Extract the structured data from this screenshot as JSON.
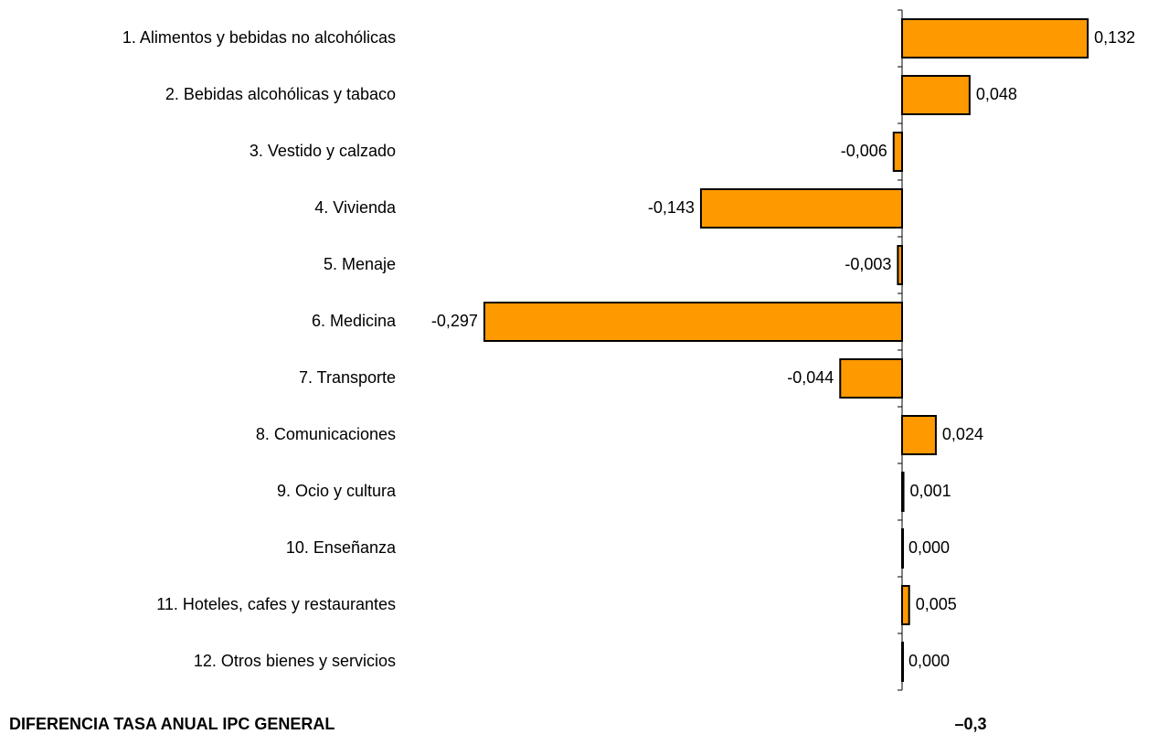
{
  "chart_data": {
    "type": "bar",
    "orientation": "horizontal",
    "categories": [
      "1. Alimentos y bebidas no alcohólicas",
      "2. Bebidas alcohólicas y tabaco",
      "3. Vestido y calzado",
      "4. Vivienda",
      "5. Menaje",
      "6. Medicina",
      "7. Transporte",
      "8. Comunicaciones",
      "9. Ocio y cultura",
      "10. Enseñanza",
      "11. Hoteles, cafes y restaurantes",
      "12. Otros bienes y servicios"
    ],
    "values": [
      0.132,
      0.048,
      -0.006,
      -0.143,
      -0.003,
      -0.297,
      -0.044,
      0.024,
      0.001,
      0.0,
      0.005,
      0.0
    ],
    "value_labels": [
      "0,132",
      "0,048",
      "-0,006",
      "-0,143",
      "-0,003",
      "-0,297",
      "-0,044",
      "0,024",
      "0,001",
      "0,000",
      "0,005",
      "0,000"
    ],
    "color": "#ff9900",
    "xlim": [
      -0.36,
      0.18
    ],
    "total": {
      "name": "DIFERENCIA TASA ANUAL IPC GENERAL",
      "value": -0.3,
      "value_label": "–0,3"
    }
  }
}
